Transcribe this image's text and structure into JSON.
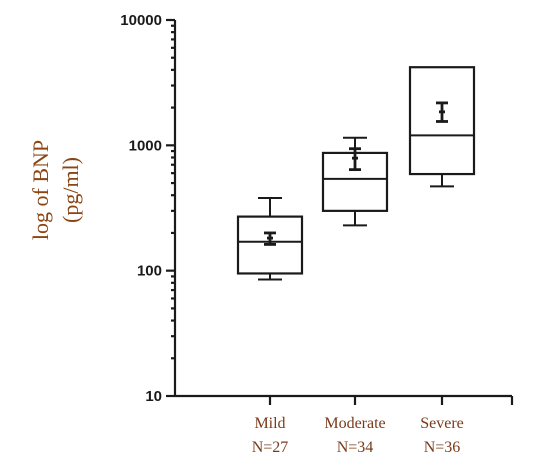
{
  "chart_data": {
    "type": "box",
    "ylabel": "log of BNP (pg/ml)",
    "ylabel_lines": [
      "log of BNP",
      "(pg/ml)"
    ],
    "yscale": "log",
    "ylim": [
      10,
      10000
    ],
    "yticks": [
      10,
      100,
      1000,
      10000
    ],
    "ytick_labels": [
      "10",
      "100",
      "1000",
      "10000"
    ],
    "categories": [
      "Mild",
      "Moderate",
      "Severe"
    ],
    "category_counts": [
      "N=27",
      "N=34",
      "N=36"
    ],
    "boxes": [
      {
        "category": "Mild",
        "whisker_low": 85,
        "q1": 95,
        "median": 170,
        "q3": 270,
        "whisker_high": 380,
        "mean": 182,
        "mean_err_low": 162,
        "mean_err_high": 200
      },
      {
        "category": "Moderate",
        "whisker_low": 230,
        "q1": 300,
        "median": 540,
        "q3": 870,
        "whisker_high": 1150,
        "mean": 790,
        "mean_err_low": 640,
        "mean_err_high": 940
      },
      {
        "category": "Severe",
        "whisker_low": 470,
        "q1": 590,
        "median": 1200,
        "q3": 4200,
        "whisker_high": 4200,
        "mean": 1850,
        "mean_err_low": 1550,
        "mean_err_high": 2180
      }
    ],
    "grid": false,
    "legend": "none",
    "color": "#1a1a1a",
    "label_color": "#8b4513"
  }
}
